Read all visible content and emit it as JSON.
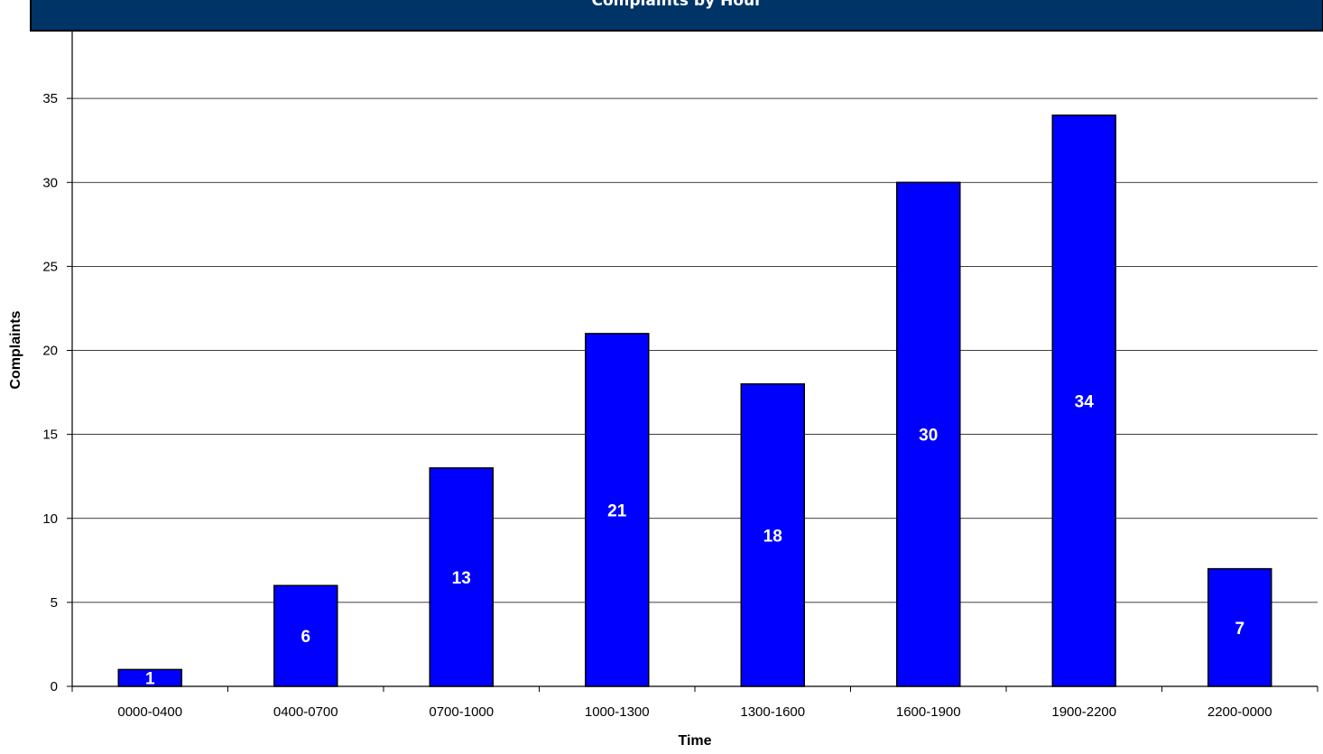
{
  "colors": {
    "bar_fill": "#0000ff",
    "bar_stroke": "#000000",
    "title_band": "#003366",
    "gridline": "#000000",
    "bar_label": "#ffffff"
  },
  "chart_data": {
    "type": "bar",
    "title": "Complaints by Hour",
    "xlabel": "Time",
    "ylabel": "Complaints",
    "categories": [
      "0000-0400",
      "0400-0700",
      "0700-1000",
      "1000-1300",
      "1300-1600",
      "1600-1900",
      "1900-2200",
      "2200-0000"
    ],
    "values": [
      1,
      6,
      13,
      21,
      18,
      30,
      34,
      7
    ],
    "ylim": [
      0,
      40
    ],
    "yticks": [
      0,
      5,
      10,
      15,
      20,
      25,
      30,
      35,
      40
    ],
    "grid": true,
    "data_labels": true,
    "legend": "none"
  }
}
